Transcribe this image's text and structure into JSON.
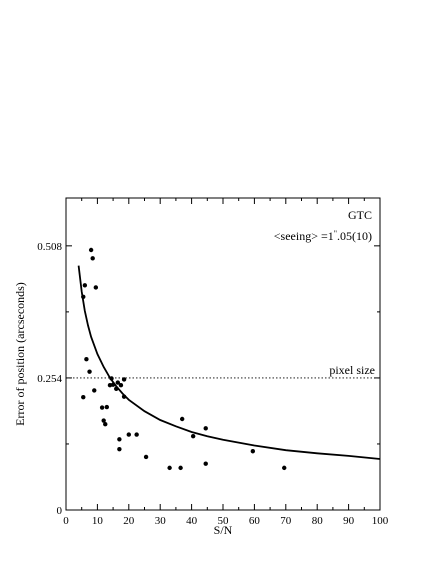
{
  "chart_data": {
    "type": "scatter",
    "xlabel": "S/N",
    "ylabel": "Error of position (arcseconds)",
    "xlim": [
      0,
      100
    ],
    "ylim": [
      0,
      0.6
    ],
    "x_ticks": [
      0,
      10,
      20,
      30,
      40,
      50,
      60,
      70,
      80,
      90,
      100
    ],
    "x_tick_labels": [
      "0",
      "10",
      "20",
      "30",
      "40",
      "50",
      "60",
      "70",
      "80",
      "90",
      "100"
    ],
    "y_ticks": [
      0,
      0.254,
      0.508
    ],
    "y_tick_labels": [
      "0",
      "0.254",
      "0.508"
    ],
    "annotations": {
      "telescope": "GTC",
      "seeing_prefix": "<seeing> =1",
      "seeing_mark": "\"",
      "seeing_suffix": ".05(10)",
      "pixel_size_label": "pixel size"
    },
    "reference_line": {
      "y": 0.254,
      "style": "dotted"
    },
    "series": [
      {
        "kind": "points",
        "x": [
          5.5,
          5.5,
          6.0,
          6.5,
          7.5,
          8.0,
          8.5,
          9.0,
          9.5,
          11.5,
          12.0,
          12.5,
          13.0,
          14.0,
          14.5,
          15.0,
          16.0,
          16.5,
          17.0,
          17.0,
          17.5,
          18.5,
          18.5,
          20.0,
          22.5,
          25.5,
          33.0,
          36.5,
          37.0,
          40.5,
          44.5,
          44.5,
          59.5,
          69.5
        ],
        "y": [
          0.217,
          0.41,
          0.432,
          0.29,
          0.266,
          0.5,
          0.484,
          0.23,
          0.428,
          0.197,
          0.172,
          0.165,
          0.198,
          0.24,
          0.253,
          0.241,
          0.233,
          0.245,
          0.136,
          0.117,
          0.24,
          0.218,
          0.251,
          0.145,
          0.145,
          0.102,
          0.081,
          0.081,
          0.175,
          0.142,
          0.157,
          0.089,
          0.113,
          0.081
        ]
      },
      {
        "kind": "curve",
        "x": [
          4.0,
          5.0,
          6.0,
          7.0,
          8.0,
          10.0,
          12.0,
          14.0,
          16.0,
          18.0,
          20.0,
          25.0,
          30.0,
          35.0,
          40.0,
          45.0,
          50.0,
          60.0,
          70.0,
          80.0,
          90.0,
          100.0
        ],
        "y": [
          0.47,
          0.42,
          0.383,
          0.355,
          0.333,
          0.3,
          0.275,
          0.254,
          0.238,
          0.224,
          0.212,
          0.19,
          0.173,
          0.161,
          0.15,
          0.142,
          0.135,
          0.124,
          0.115,
          0.109,
          0.104,
          0.098
        ]
      }
    ]
  }
}
